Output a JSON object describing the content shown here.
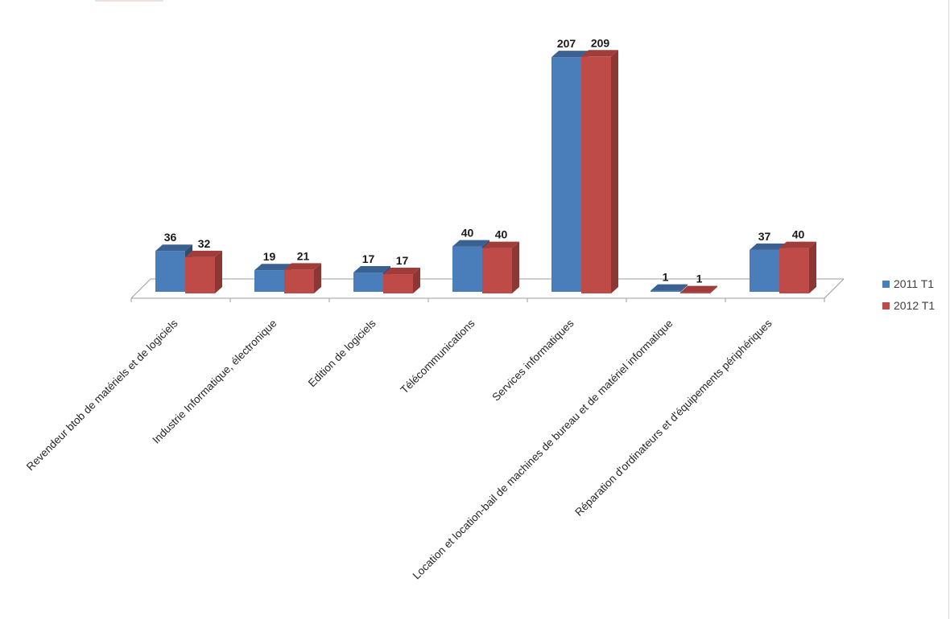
{
  "chart_data": {
    "type": "bar",
    "projection": "3d-clustered-column",
    "title": "",
    "xlabel": "",
    "ylabel": "",
    "grid": false,
    "legend_position": "right",
    "value_labels_shown": true,
    "categories": [
      "Revendeur btob de matériels et de logiciels",
      "Industrie Informatique, électronique",
      "Edition de logiciels",
      "Télécommunications",
      "Services informatiques",
      "Location et location-bail de machines de bureau et de matériel informatique",
      "Réparation d'ordinateurs et d'équipements périphériques"
    ],
    "series": [
      {
        "name": "2011 T1",
        "color": "#4a7ebb",
        "color_top": "#3a6191",
        "color_side": "#2e4d74",
        "values": [
          36,
          19,
          17,
          40,
          207,
          1,
          37
        ]
      },
      {
        "name": "2012 T1",
        "color": "#be4b48",
        "color_top": "#a03d3a",
        "color_side": "#8c3734",
        "values": [
          32,
          21,
          17,
          40,
          209,
          1,
          40
        ]
      }
    ],
    "colors": {
      "axis": "#9c9c9c",
      "category_label": "#262626",
      "value_label": "#1a1a1a",
      "legend_text": "#3f3f3f"
    }
  }
}
